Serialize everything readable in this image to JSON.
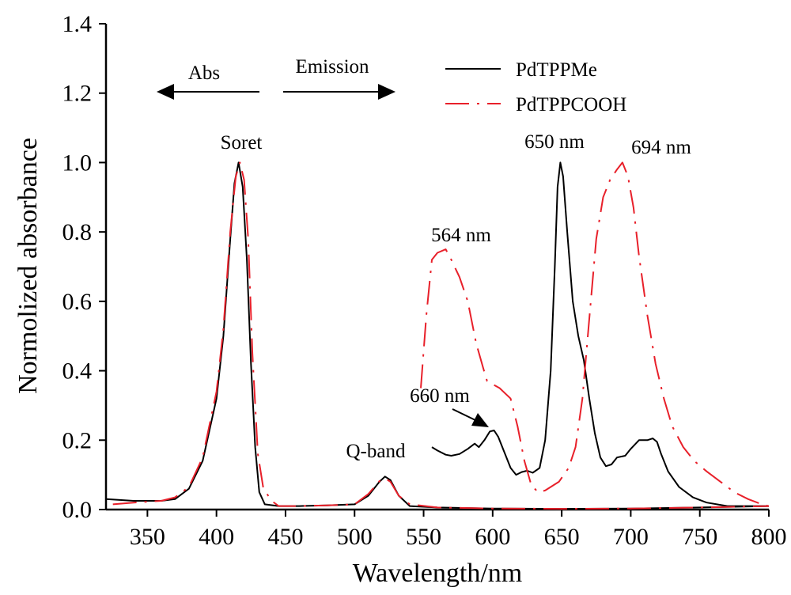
{
  "chart_data": {
    "type": "line",
    "xlabel": "Wavelength/nm",
    "ylabel": "Normolized absorbance",
    "xlim": [
      320,
      800
    ],
    "ylim": [
      0,
      1.4
    ],
    "x_ticks": [
      350,
      400,
      450,
      500,
      550,
      600,
      650,
      700,
      750,
      800
    ],
    "y_ticks": [
      "0.0",
      "0.2",
      "0.4",
      "0.6",
      "0.8",
      "1.0",
      "1.2",
      "1.4"
    ],
    "legend_position": "top-right",
    "series": [
      {
        "name": "PdTPPMe",
        "color": "#000000",
        "style": "solid",
        "segments": [
          [
            [
              320,
              0.03
            ],
            [
              340,
              0.025
            ],
            [
              360,
              0.025
            ],
            [
              370,
              0.03
            ],
            [
              380,
              0.06
            ],
            [
              390,
              0.14
            ],
            [
              400,
              0.32
            ],
            [
              405,
              0.5
            ],
            [
              410,
              0.78
            ],
            [
              413,
              0.94
            ],
            [
              416,
              1.0
            ],
            [
              419,
              0.93
            ],
            [
              422,
              0.72
            ],
            [
              425,
              0.42
            ],
            [
              428,
              0.18
            ],
            [
              431,
              0.05
            ],
            [
              435,
              0.015
            ],
            [
              445,
              0.01
            ],
            [
              460,
              0.01
            ],
            [
              480,
              0.012
            ],
            [
              500,
              0.015
            ],
            [
              510,
              0.04
            ],
            [
              518,
              0.08
            ],
            [
              522,
              0.095
            ],
            [
              526,
              0.085
            ],
            [
              532,
              0.04
            ],
            [
              540,
              0.01
            ],
            [
              560,
              0.006
            ],
            [
              600,
              0.003
            ],
            [
              650,
              0.002
            ],
            [
              700,
              0.003
            ],
            [
              750,
              0.006
            ],
            [
              800,
              0.01
            ]
          ],
          [
            [
              556,
              0.18
            ],
            [
              560,
              0.17
            ],
            [
              566,
              0.158
            ],
            [
              570,
              0.155
            ],
            [
              576,
              0.16
            ],
            [
              582,
              0.175
            ],
            [
              587,
              0.19
            ],
            [
              590,
              0.18
            ],
            [
              594,
              0.2
            ],
            [
              598,
              0.225
            ],
            [
              601,
              0.228
            ],
            [
              604,
              0.21
            ],
            [
              609,
              0.16
            ],
            [
              613,
              0.12
            ],
            [
              617,
              0.1
            ],
            [
              621,
              0.108
            ],
            [
              625,
              0.112
            ],
            [
              629,
              0.106
            ],
            [
              634,
              0.12
            ],
            [
              638,
              0.2
            ],
            [
              642,
              0.4
            ],
            [
              645,
              0.7
            ],
            [
              647,
              0.93
            ],
            [
              649,
              1.0
            ],
            [
              651,
              0.96
            ],
            [
              654,
              0.8
            ],
            [
              658,
              0.6
            ],
            [
              662,
              0.5
            ],
            [
              666,
              0.43
            ],
            [
              670,
              0.32
            ],
            [
              674,
              0.22
            ],
            [
              678,
              0.15
            ],
            [
              682,
              0.125
            ],
            [
              686,
              0.13
            ],
            [
              690,
              0.15
            ],
            [
              696,
              0.155
            ],
            [
              700,
              0.175
            ],
            [
              706,
              0.2
            ],
            [
              712,
              0.2
            ],
            [
              716,
              0.205
            ],
            [
              719,
              0.195
            ],
            [
              722,
              0.16
            ],
            [
              727,
              0.11
            ],
            [
              735,
              0.065
            ],
            [
              745,
              0.035
            ],
            [
              755,
              0.02
            ],
            [
              770,
              0.01
            ],
            [
              800,
              0.01
            ]
          ]
        ]
      },
      {
        "name": "PdTPPCOOH",
        "color": "#e8202a",
        "style": "dash-dot",
        "segments": [
          [
            [
              325,
              0.015
            ],
            [
              340,
              0.02
            ],
            [
              360,
              0.025
            ],
            [
              370,
              0.035
            ],
            [
              380,
              0.065
            ],
            [
              390,
              0.15
            ],
            [
              400,
              0.34
            ],
            [
              405,
              0.52
            ],
            [
              410,
              0.8
            ],
            [
              414,
              0.96
            ],
            [
              417,
              1.0
            ],
            [
              420,
              0.95
            ],
            [
              423,
              0.78
            ],
            [
              426,
              0.45
            ],
            [
              430,
              0.16
            ],
            [
              434,
              0.06
            ],
            [
              440,
              0.025
            ],
            [
              445,
              0.01
            ],
            [
              460,
              0.01
            ],
            [
              480,
              0.012
            ],
            [
              500,
              0.015
            ],
            [
              510,
              0.045
            ],
            [
              518,
              0.082
            ],
            [
              522,
              0.09
            ],
            [
              526,
              0.08
            ],
            [
              532,
              0.04
            ],
            [
              540,
              0.015
            ],
            [
              560,
              0.006
            ],
            [
              600,
              0.003
            ],
            [
              650,
              0.002
            ],
            [
              700,
              0.003
            ],
            [
              750,
              0.006
            ],
            [
              800,
              0.01
            ]
          ],
          [
            [
              548,
              0.35
            ],
            [
              552,
              0.56
            ],
            [
              556,
              0.72
            ],
            [
              560,
              0.74
            ],
            [
              566,
              0.75
            ],
            [
              570,
              0.72
            ],
            [
              576,
              0.67
            ],
            [
              582,
              0.6
            ],
            [
              588,
              0.48
            ],
            [
              593,
              0.41
            ],
            [
              596,
              0.37
            ],
            [
              605,
              0.35
            ],
            [
              613,
              0.32
            ],
            [
              618,
              0.24
            ],
            [
              623,
              0.14
            ],
            [
              628,
              0.07
            ],
            [
              633,
              0.05
            ],
            [
              638,
              0.055
            ],
            [
              648,
              0.08
            ],
            [
              655,
              0.12
            ],
            [
              660,
              0.18
            ],
            [
              665,
              0.32
            ],
            [
              670,
              0.55
            ],
            [
              675,
              0.78
            ],
            [
              680,
              0.9
            ],
            [
              685,
              0.95
            ],
            [
              690,
              0.98
            ],
            [
              694,
              1.0
            ],
            [
              698,
              0.96
            ],
            [
              702,
              0.87
            ],
            [
              706,
              0.73
            ],
            [
              712,
              0.56
            ],
            [
              718,
              0.42
            ],
            [
              724,
              0.32
            ],
            [
              730,
              0.24
            ],
            [
              738,
              0.18
            ],
            [
              746,
              0.14
            ],
            [
              755,
              0.11
            ],
            [
              765,
              0.08
            ],
            [
              775,
              0.05
            ],
            [
              785,
              0.03
            ],
            [
              795,
              0.015
            ],
            [
              800,
              0.01
            ]
          ]
        ]
      }
    ],
    "annotations": {
      "abs": "Abs",
      "emission": "Emission",
      "soret": "Soret",
      "qband": "Q-band",
      "nm650": "650 nm",
      "nm694": "694 nm",
      "nm564": "564 nm",
      "nm660": "660 nm"
    }
  }
}
